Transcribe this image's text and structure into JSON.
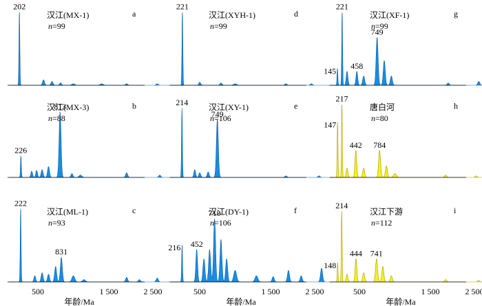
{
  "chart_data": [
    {
      "panel": "a",
      "type": "area",
      "sample": "汉江(MX-1)",
      "n": "n=99",
      "color": "#1a8ce0",
      "peaks": [
        {
          "age": 202,
          "height": 0.95,
          "label": "202"
        },
        {
          "age": 580,
          "height": 0.07,
          "label": ""
        },
        {
          "age": 700,
          "height": 0.05,
          "label": ""
        },
        {
          "age": 820,
          "height": 0.03,
          "label": ""
        },
        {
          "age": 1000,
          "height": 0.02,
          "label": ""
        },
        {
          "age": 1400,
          "height": 0.02,
          "label": ""
        },
        {
          "age": 1850,
          "height": 0.02,
          "label": ""
        },
        {
          "age": 2450,
          "height": 0.02,
          "label": ""
        }
      ]
    },
    {
      "panel": "b",
      "type": "area",
      "sample": "汉江(MX-3)",
      "n": "n=88",
      "color": "#1a8ce0",
      "peaks": [
        {
          "age": 226,
          "height": 0.28,
          "label": "226"
        },
        {
          "age": 400,
          "height": 0.08,
          "label": ""
        },
        {
          "age": 480,
          "height": 0.09,
          "label": ""
        },
        {
          "age": 560,
          "height": 0.1,
          "label": ""
        },
        {
          "age": 650,
          "height": 0.14,
          "label": ""
        },
        {
          "age": 813,
          "height": 0.85,
          "label": "813"
        },
        {
          "age": 980,
          "height": 0.05,
          "label": ""
        },
        {
          "age": 1100,
          "height": 0.03,
          "label": ""
        },
        {
          "age": 1850,
          "height": 0.06,
          "label": ""
        },
        {
          "age": 2500,
          "height": 0.03,
          "label": ""
        }
      ]
    },
    {
      "panel": "c",
      "type": "area",
      "sample": "汉江(ML-1)",
      "n": "n=93",
      "color": "#1a8ce0",
      "peaks": [
        {
          "age": 222,
          "height": 0.95,
          "label": "222"
        },
        {
          "age": 450,
          "height": 0.08,
          "label": ""
        },
        {
          "age": 560,
          "height": 0.12,
          "label": ""
        },
        {
          "age": 650,
          "height": 0.1,
          "label": ""
        },
        {
          "age": 750,
          "height": 0.2,
          "label": ""
        },
        {
          "age": 831,
          "height": 0.32,
          "label": "831"
        },
        {
          "age": 1000,
          "height": 0.08,
          "label": ""
        },
        {
          "age": 1150,
          "height": 0.03,
          "label": ""
        },
        {
          "age": 1850,
          "height": 0.06,
          "label": ""
        },
        {
          "age": 2100,
          "height": 0.03,
          "label": ""
        },
        {
          "age": 2450,
          "height": 0.05,
          "label": ""
        }
      ]
    },
    {
      "panel": "d",
      "type": "area",
      "sample": "汉江(XYH-1)",
      "n": "n=99",
      "color": "#1a8ce0",
      "peaks": [
        {
          "age": 221,
          "height": 0.95,
          "label": "221"
        },
        {
          "age": 500,
          "height": 0.04,
          "label": ""
        },
        {
          "age": 800,
          "height": 0.03,
          "label": ""
        },
        {
          "age": 1000,
          "height": 0.02,
          "label": ""
        },
        {
          "age": 1800,
          "height": 0.02,
          "label": ""
        },
        {
          "age": 2300,
          "height": 0.02,
          "label": ""
        }
      ]
    },
    {
      "panel": "e",
      "type": "area",
      "sample": "汉江(XY-1)",
      "n": "n=106",
      "color": "#1a8ce0",
      "peaks": [
        {
          "age": 214,
          "height": 0.9,
          "label": "214"
        },
        {
          "age": 420,
          "height": 0.1,
          "label": ""
        },
        {
          "age": 500,
          "height": 0.06,
          "label": ""
        },
        {
          "age": 620,
          "height": 0.07,
          "label": ""
        },
        {
          "age": 749,
          "height": 0.75,
          "label": "749"
        },
        {
          "age": 1800,
          "height": 0.02,
          "label": ""
        },
        {
          "age": 2450,
          "height": 0.02,
          "label": ""
        }
      ]
    },
    {
      "panel": "f",
      "type": "area",
      "sample": "汉江(DY-1)",
      "n": "n=106",
      "color": "#1a8ce0",
      "peaks": [
        {
          "age": 216,
          "height": 0.48,
          "label": "216"
        },
        {
          "age": 452,
          "height": 0.42,
          "label": "452"
        },
        {
          "age": 560,
          "height": 0.3,
          "label": ""
        },
        {
          "age": 640,
          "height": 0.42,
          "label": ""
        },
        {
          "age": 710,
          "height": 0.82,
          "label": "710"
        },
        {
          "age": 800,
          "height": 0.55,
          "label": ""
        },
        {
          "age": 880,
          "height": 0.3,
          "label": ""
        },
        {
          "age": 1000,
          "height": 0.15,
          "label": ""
        },
        {
          "age": 1300,
          "height": 0.08,
          "label": ""
        },
        {
          "age": 1550,
          "height": 0.07,
          "label": ""
        },
        {
          "age": 1850,
          "height": 0.15,
          "label": ""
        },
        {
          "age": 2100,
          "height": 0.08,
          "label": ""
        },
        {
          "age": 2500,
          "height": 0.18,
          "label": ""
        }
      ]
    },
    {
      "panel": "g",
      "type": "area",
      "sample": "汉江(XF-1)",
      "n": "n=99",
      "color": "#1a8ce0",
      "peaks": [
        {
          "age": 145,
          "height": 0.22,
          "label": "145"
        },
        {
          "age": 221,
          "height": 0.95,
          "label": "221"
        },
        {
          "age": 300,
          "height": 0.18,
          "label": ""
        },
        {
          "age": 458,
          "height": 0.18,
          "label": "458"
        },
        {
          "age": 560,
          "height": 0.12,
          "label": ""
        },
        {
          "age": 749,
          "height": 0.62,
          "label": "749"
        },
        {
          "age": 850,
          "height": 0.32,
          "label": ""
        },
        {
          "age": 950,
          "height": 0.12,
          "label": ""
        },
        {
          "age": 1850,
          "height": 0.03,
          "label": ""
        },
        {
          "age": 2450,
          "height": 0.05,
          "label": ""
        }
      ]
    },
    {
      "panel": "h",
      "type": "area",
      "sample": "唐白河",
      "n": "n=80",
      "color": "#f5f020",
      "peaks": [
        {
          "age": 147,
          "height": 0.72,
          "label": "147"
        },
        {
          "age": 217,
          "height": 0.95,
          "label": "217"
        },
        {
          "age": 300,
          "height": 0.12,
          "label": ""
        },
        {
          "age": 442,
          "height": 0.35,
          "label": "442"
        },
        {
          "age": 560,
          "height": 0.12,
          "label": ""
        },
        {
          "age": 784,
          "height": 0.35,
          "label": "784"
        },
        {
          "age": 880,
          "height": 0.15,
          "label": ""
        },
        {
          "age": 1000,
          "height": 0.05,
          "label": ""
        },
        {
          "age": 1800,
          "height": 0.03,
          "label": ""
        },
        {
          "age": 2400,
          "height": 0.02,
          "label": ""
        }
      ]
    },
    {
      "panel": "i",
      "type": "area",
      "sample": "汉江下游",
      "n": "n=112",
      "color": "#f5f020",
      "peaks": [
        {
          "age": 148,
          "height": 0.25,
          "label": "148"
        },
        {
          "age": 214,
          "height": 0.92,
          "label": "214"
        },
        {
          "age": 300,
          "height": 0.1,
          "label": ""
        },
        {
          "age": 444,
          "height": 0.3,
          "label": "444"
        },
        {
          "age": 560,
          "height": 0.12,
          "label": ""
        },
        {
          "age": 741,
          "height": 0.3,
          "label": "741"
        },
        {
          "age": 830,
          "height": 0.2,
          "label": ""
        },
        {
          "age": 950,
          "height": 0.08,
          "label": ""
        },
        {
          "age": 1800,
          "height": 0.03,
          "label": ""
        },
        {
          "age": 2450,
          "height": 0.02,
          "label": ""
        }
      ]
    }
  ],
  "axes": {
    "xticks": [
      500,
      1500,
      2500
    ],
    "xtick_labels": [
      "500",
      "1 500",
      "2 500"
    ],
    "xlim": [
      0,
      3300
    ],
    "xlabel": "年龄/Ma"
  }
}
